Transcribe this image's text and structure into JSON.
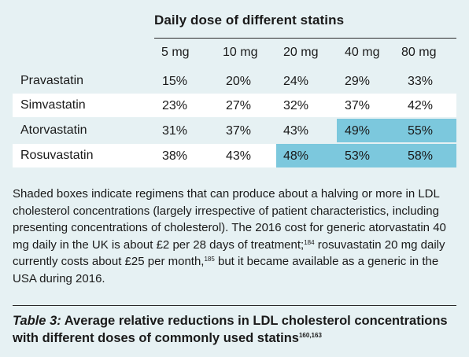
{
  "table": {
    "group_header": "Daily dose of different statins",
    "columns": [
      "5 mg",
      "10 mg",
      "20 mg",
      "40 mg",
      "80 mg"
    ],
    "rows": [
      {
        "name": "Pravastatin",
        "values": [
          "15%",
          "20%",
          "24%",
          "29%",
          "33%"
        ],
        "shaded": [
          false,
          false,
          false,
          false,
          false
        ]
      },
      {
        "name": "Simvastatin",
        "values": [
          "23%",
          "27%",
          "32%",
          "37%",
          "42%"
        ],
        "shaded": [
          false,
          false,
          false,
          false,
          false
        ]
      },
      {
        "name": "Atorvastatin",
        "values": [
          "31%",
          "37%",
          "43%",
          "49%",
          "55%"
        ],
        "shaded": [
          false,
          false,
          false,
          true,
          true
        ]
      },
      {
        "name": "Rosuvastatin",
        "values": [
          "38%",
          "43%",
          "48%",
          "53%",
          "58%"
        ],
        "shaded": [
          false,
          false,
          true,
          true,
          true
        ]
      }
    ]
  },
  "notes": {
    "part1": "Shaded boxes indicate regimens that can produce about a halving or more in LDL cholesterol concentrations (largely irrespective of patient characteristics, including presenting concentrations of cholesterol). The 2016 cost for generic atorvastatin 40 mg daily in the UK is about £2 per 28 days of treatment;",
    "ref1": "184",
    "part2": " rosuvastatin 20 mg daily currently costs about £25 per month,",
    "ref2": "185",
    "part3": " but it became available as a generic in the USA during 2016."
  },
  "caption": {
    "label": "Table 3:",
    "text": " Average relative reductions in LDL cholesterol concentrations with different doses of commonly used statins",
    "refs": "160,163"
  },
  "colors": {
    "background": "#e6f1f3",
    "shaded_cell": "#7cc8dd",
    "white_row": "#ffffff"
  }
}
